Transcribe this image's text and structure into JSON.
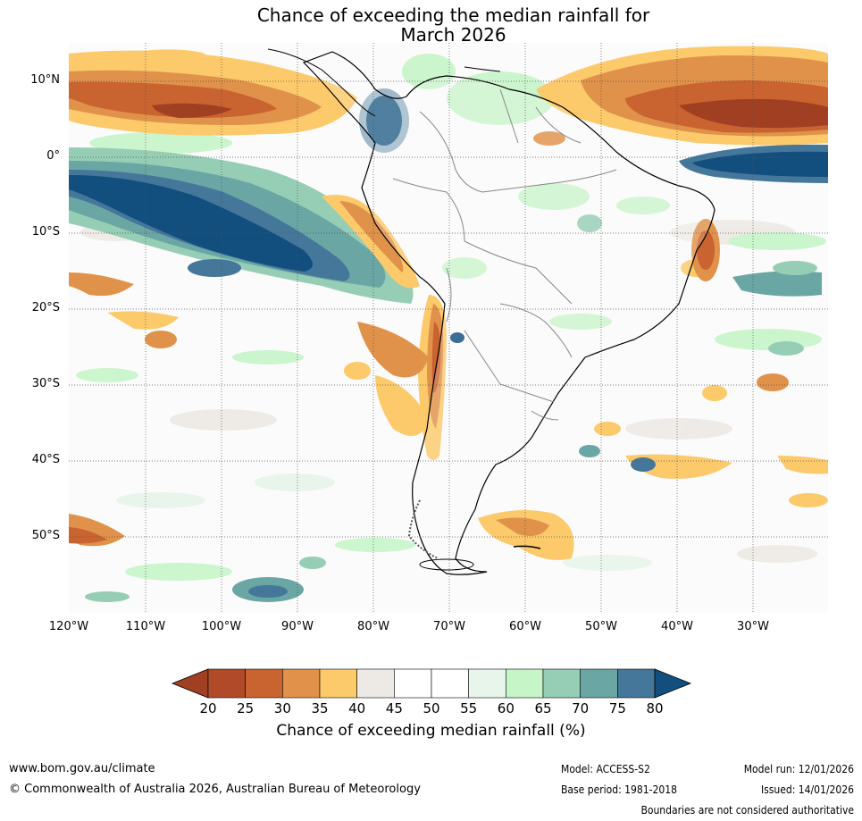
{
  "title": {
    "line1": "Chance of exceeding the median rainfall for",
    "line2": "March 2026"
  },
  "map": {
    "region": "South America",
    "lat_labels": [
      "10°N",
      "0°",
      "10°S",
      "20°S",
      "30°S",
      "40°S",
      "50°S"
    ],
    "lon_labels": [
      "120°W",
      "110°W",
      "100°W",
      "90°W",
      "80°W",
      "70°W",
      "60°W",
      "50°W",
      "40°W",
      "30°W"
    ]
  },
  "colorbar": {
    "ticks": [
      "20",
      "25",
      "30",
      "35",
      "40",
      "45",
      "50",
      "55",
      "60",
      "65",
      "70",
      "75",
      "80"
    ],
    "colors": [
      "#a13f22",
      "#b14a28",
      "#c9632f",
      "#e0924a",
      "#fcc96b",
      "#edeae5",
      "#ffffff",
      "#ffffff",
      "#e8f5ea",
      "#c6f5c8",
      "#96cdb5",
      "#6aa6a4",
      "#44779a",
      "#124e7e"
    ],
    "title": "Chance of exceeding median rainfall (%)"
  },
  "footer": {
    "url": "www.bom.gov.au/climate",
    "copyright": "© Commonwealth of Australia 2026, Australian Bureau of Meteorology",
    "model": "Model: ACCESS-S2",
    "base_period": "Base period: 1981-2018",
    "model_run": "Model run: 12/01/2026",
    "issued": "Issued: 14/01/2026",
    "disclaimer": "Boundaries are not considered authoritative"
  }
}
